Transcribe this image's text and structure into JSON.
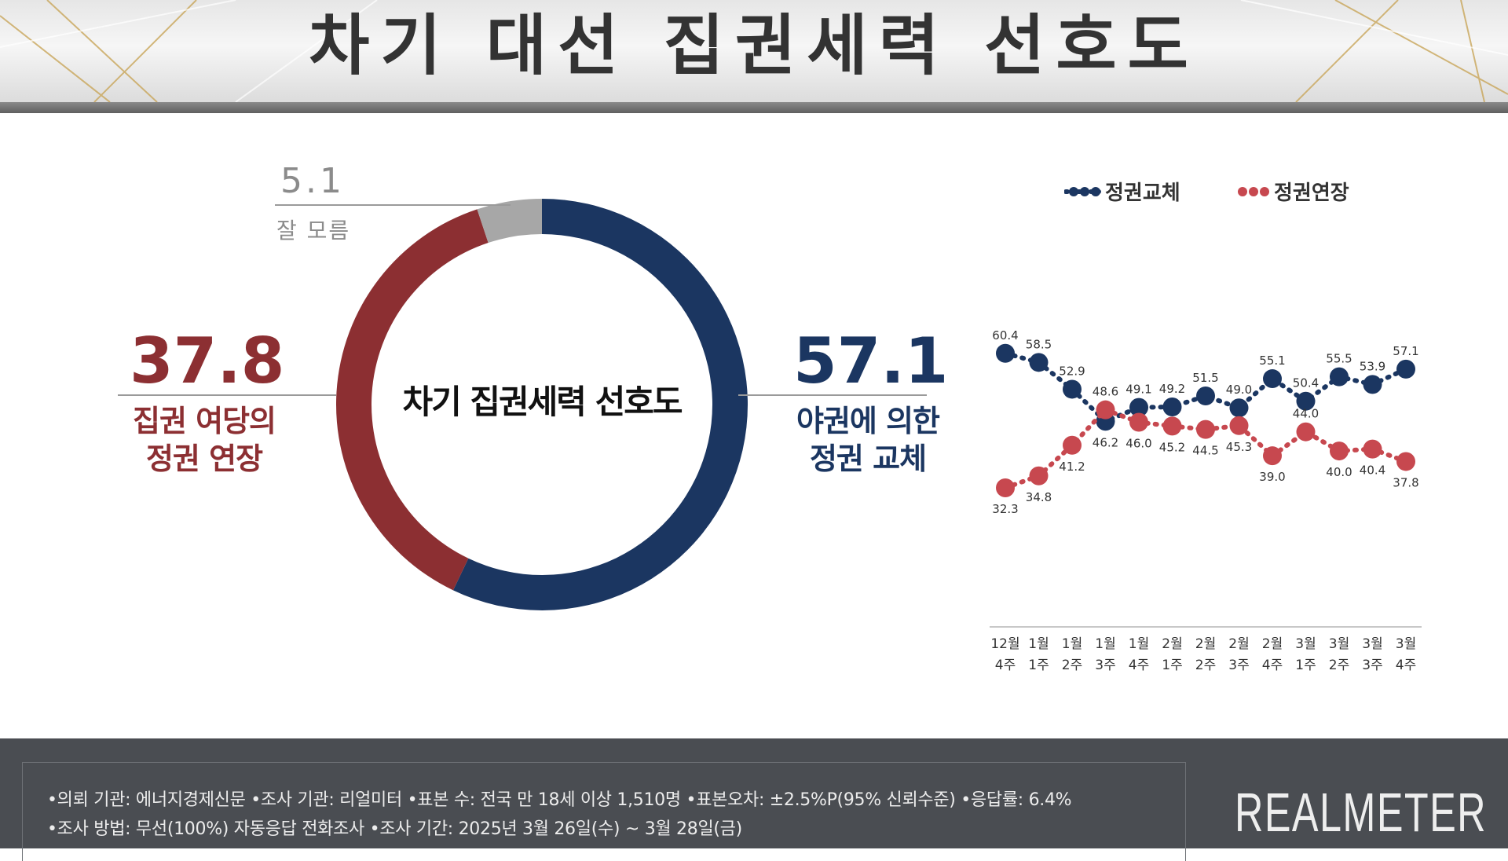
{
  "header": {
    "title": "차기 대선 집권세력 선호도"
  },
  "donut": {
    "center_label": "차기 집권세력 선호도",
    "left": {
      "value": "37.8",
      "label_line1": "집권 여당의",
      "label_line2": "정권 연장"
    },
    "right": {
      "value": "57.1",
      "label_line1": "야권에 의한",
      "label_line2": "정권 교체"
    },
    "unknown": {
      "value": "5.1",
      "label": "잘 모름"
    }
  },
  "legend": {
    "blue_label": "정권교체",
    "red_label": "정권연장"
  },
  "colors": {
    "blue": "#1b3661",
    "red": "#8c2f32",
    "gray": "#a7a7a7",
    "line_red": "#c7484f"
  },
  "chart_data": [
    {
      "type": "pie",
      "title": "차기 집권세력 선호도",
      "slices": [
        {
          "label": "야권에 의한 정권 교체",
          "value": 57.1,
          "color": "#1b3661"
        },
        {
          "label": "집권 여당의 정권 연장",
          "value": 37.8,
          "color": "#8c2f32"
        },
        {
          "label": "잘 모름",
          "value": 5.1,
          "color": "#a7a7a7"
        }
      ]
    },
    {
      "type": "line",
      "categories": [
        [
          "12월",
          "4주"
        ],
        [
          "1월",
          "1주"
        ],
        [
          "1월",
          "2주"
        ],
        [
          "1월",
          "3주"
        ],
        [
          "1월",
          "4주"
        ],
        [
          "2월",
          "1주"
        ],
        [
          "2월",
          "2주"
        ],
        [
          "2월",
          "3주"
        ],
        [
          "2월",
          "4주"
        ],
        [
          "3월",
          "1주"
        ],
        [
          "3월",
          "2주"
        ],
        [
          "3월",
          "3주"
        ],
        [
          "3월",
          "4주"
        ]
      ],
      "series": [
        {
          "name": "정권교체",
          "color": "#1b3661",
          "values": [
            60.4,
            58.5,
            52.9,
            46.2,
            49.1,
            49.2,
            51.5,
            49.0,
            55.1,
            50.4,
            55.5,
            53.9,
            57.1
          ]
        },
        {
          "name": "정권연장",
          "color": "#c7484f",
          "values": [
            32.3,
            34.8,
            41.2,
            48.6,
            46.0,
            45.2,
            44.5,
            45.3,
            39.0,
            44.0,
            40.0,
            40.4,
            37.8
          ]
        }
      ],
      "data_label_positions": {
        "정권교체": [
          "above",
          "above",
          "above",
          "below",
          "above",
          "above",
          "above",
          "above",
          "above",
          "above",
          "above",
          "above",
          "above"
        ],
        "정권연장": [
          "below",
          "below",
          "below",
          "above",
          "below",
          "below",
          "below",
          "below",
          "below",
          "above",
          "below",
          "below",
          "below"
        ]
      },
      "legend_position": "top"
    }
  ],
  "footer": {
    "note_line1": "•의뢰 기관: 에너지경제신문  •조사 기관: 리얼미터  •표본 수: 전국 만 18세 이상 1,510명  •표본오차: ±2.5%P(95% 신뢰수준)  •응답률: 6.4%",
    "note_line2": "•조사 방법: 무선(100%) 자동응답 전화조사  •조사 기간: 2025년 3월 26일(수) ~ 3월 28일(금)",
    "brand": "REALMETER"
  }
}
